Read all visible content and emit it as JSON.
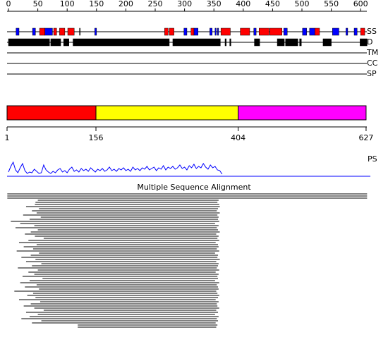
{
  "ruler": {
    "min": 0,
    "max": 600,
    "ticks": [
      0,
      50,
      100,
      150,
      200,
      250,
      300,
      350,
      400,
      450,
      500,
      550,
      600
    ]
  },
  "tracks": [
    {
      "label": "SS",
      "segments": [
        {
          "color": "#0000ff",
          "ranges": [
            [
              13,
              18
            ],
            [
              41,
              46
            ],
            [
              62,
              75
            ],
            [
              147,
              150
            ],
            [
              299,
              304
            ],
            [
              316,
              323
            ],
            [
              343,
              347
            ],
            [
              352,
              354
            ],
            [
              356,
              358
            ],
            [
              418,
              422
            ],
            [
              469,
              475
            ],
            [
              501,
              508
            ],
            [
              513,
              522
            ],
            [
              552,
              563
            ],
            [
              575,
              578
            ],
            [
              589,
              594
            ]
          ]
        },
        {
          "color": "#ff0000",
          "ranges": [
            [
              53,
              62
            ],
            [
              77,
              82
            ],
            [
              87,
              96
            ],
            [
              101,
              112
            ],
            [
              266,
              272
            ],
            [
              274,
              282
            ],
            [
              311,
              316
            ],
            [
              362,
              378
            ],
            [
              395,
              411
            ],
            [
              427,
              444
            ],
            [
              445,
              466
            ],
            [
              522,
              530
            ],
            [
              600,
              607
            ]
          ]
        },
        {
          "color": "#000000",
          "ranges": [
            [
              121,
              122
            ]
          ]
        }
      ]
    },
    {
      "label": "D",
      "segments": [
        {
          "color": "#000000",
          "ranges": [
            [
              0,
              70
            ],
            [
              72,
              89
            ],
            [
              94,
              103
            ],
            [
              110,
              274
            ],
            [
              280,
              361
            ],
            [
              369,
              371
            ],
            [
              377,
              379
            ],
            [
              419,
              428
            ],
            [
              458,
              470
            ],
            [
              472,
              493
            ],
            [
              496,
              499
            ],
            [
              536,
              550
            ],
            [
              599,
              611
            ]
          ]
        }
      ]
    },
    {
      "label": "TM",
      "segments": []
    },
    {
      "label": "CC",
      "segments": []
    },
    {
      "label": "SP",
      "segments": []
    }
  ],
  "domains": {
    "boundaries": [
      1,
      156,
      404,
      627
    ],
    "colors": [
      "#ff0000",
      "#ffff00",
      "#ff00ff"
    ]
  },
  "profile": {
    "label": "PS",
    "step": 4,
    "color": "#0000ff",
    "values": [
      6,
      14,
      20,
      9,
      5,
      12,
      18,
      8,
      4,
      6,
      5,
      10,
      7,
      4,
      5,
      16,
      9,
      6,
      4,
      7,
      5,
      9,
      11,
      6,
      8,
      5,
      10,
      13,
      7,
      9,
      6,
      11,
      8,
      10,
      7,
      12,
      9,
      6,
      10,
      8,
      11,
      7,
      9,
      13,
      8,
      10,
      7,
      11,
      9,
      12,
      8,
      10,
      7,
      13,
      9,
      11,
      8,
      12,
      10,
      14,
      9,
      11,
      13,
      8,
      12,
      10,
      15,
      9,
      13,
      11,
      14,
      10,
      12,
      16,
      11,
      13,
      9,
      15,
      12,
      17,
      11,
      14,
      12,
      18,
      13,
      10,
      16,
      12,
      14,
      9,
      8,
      3
    ]
  },
  "alignment": {
    "title": "Multiple Sequence Alignment",
    "lines": [
      [
        -2,
        611
      ],
      [
        -2,
        611
      ],
      [
        -2,
        611
      ],
      [
        50,
        358
      ],
      [
        46,
        356
      ],
      [
        45,
        359
      ],
      [
        30,
        360
      ],
      [
        52,
        357
      ],
      [
        40,
        355
      ],
      [
        48,
        360
      ],
      [
        25,
        356
      ],
      [
        55,
        358
      ],
      [
        36,
        357
      ],
      [
        4,
        359
      ],
      [
        20,
        352
      ],
      [
        44,
        358
      ],
      [
        12,
        355
      ],
      [
        50,
        357
      ],
      [
        38,
        360
      ],
      [
        28,
        354
      ],
      [
        45,
        358
      ],
      [
        60,
        356
      ],
      [
        34,
        359
      ],
      [
        18,
        353
      ],
      [
        48,
        357
      ],
      [
        26,
        358
      ],
      [
        42,
        355
      ],
      [
        14,
        359
      ],
      [
        52,
        352
      ],
      [
        38,
        357
      ],
      [
        22,
        356
      ],
      [
        46,
        360
      ],
      [
        30,
        354
      ],
      [
        56,
        358
      ],
      [
        40,
        357
      ],
      [
        16,
        355
      ],
      [
        50,
        359
      ],
      [
        34,
        353
      ],
      [
        44,
        358
      ],
      [
        24,
        356
      ],
      [
        58,
        357
      ],
      [
        36,
        352
      ],
      [
        20,
        359
      ],
      [
        48,
        355
      ],
      [
        28,
        357
      ],
      [
        52,
        358
      ],
      [
        10,
        354
      ],
      [
        42,
        356
      ],
      [
        32,
        359
      ],
      [
        46,
        357
      ],
      [
        18,
        353
      ],
      [
        54,
        358
      ],
      [
        38,
        355
      ],
      [
        26,
        356
      ],
      [
        44,
        359
      ],
      [
        60,
        354
      ],
      [
        30,
        357
      ],
      [
        50,
        352
      ],
      [
        36,
        358
      ],
      [
        22,
        355
      ],
      [
        56,
        357
      ],
      [
        40,
        353
      ],
      [
        118,
        356
      ],
      [
        118,
        354
      ]
    ]
  }
}
